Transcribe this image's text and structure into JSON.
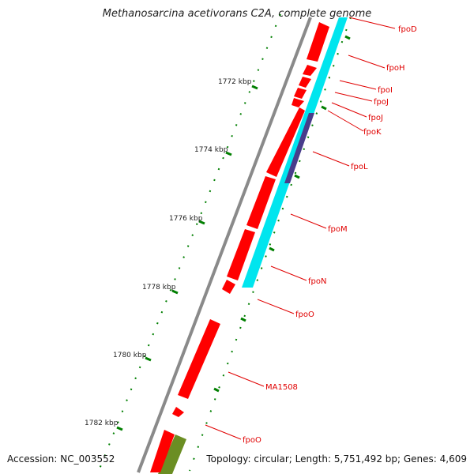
{
  "title": "Methanosarcina acetivorans C2A, complete genome",
  "footer": {
    "accession": "Accession: NC_003552",
    "stats": "Topology: circular; Length: 5,751,492 bp; Genes: 4,609"
  },
  "colors": {
    "backbone": "#8a8a8a",
    "gene": "#ff0000",
    "gene_label": "#e00000",
    "cds_track": "#00e5ee",
    "cds_highlight": "#483d8b",
    "other_feature": "#6b8e23",
    "tick": "#007f00",
    "kbp_label": "#222222"
  },
  "scale": {
    "unit": "kbp",
    "major_ticks": [
      {
        "label": "1772 kbp"
      },
      {
        "label": "1774 kbp"
      },
      {
        "label": "1776 kbp"
      },
      {
        "label": "1778 kbp"
      },
      {
        "label": "1780 kbp"
      },
      {
        "label": "1782 kbp"
      }
    ]
  },
  "genes": [
    {
      "name": "fpoD"
    },
    {
      "name": "fpoH"
    },
    {
      "name": "fpoI"
    },
    {
      "name": "fpoJ"
    },
    {
      "name": "fpoJ"
    },
    {
      "name": "fpoK"
    },
    {
      "name": "fpoL"
    },
    {
      "name": "fpoM"
    },
    {
      "name": "fpoN"
    },
    {
      "name": "fpoO"
    },
    {
      "name": "MA1508"
    },
    {
      "name": "fpoO"
    }
  ]
}
